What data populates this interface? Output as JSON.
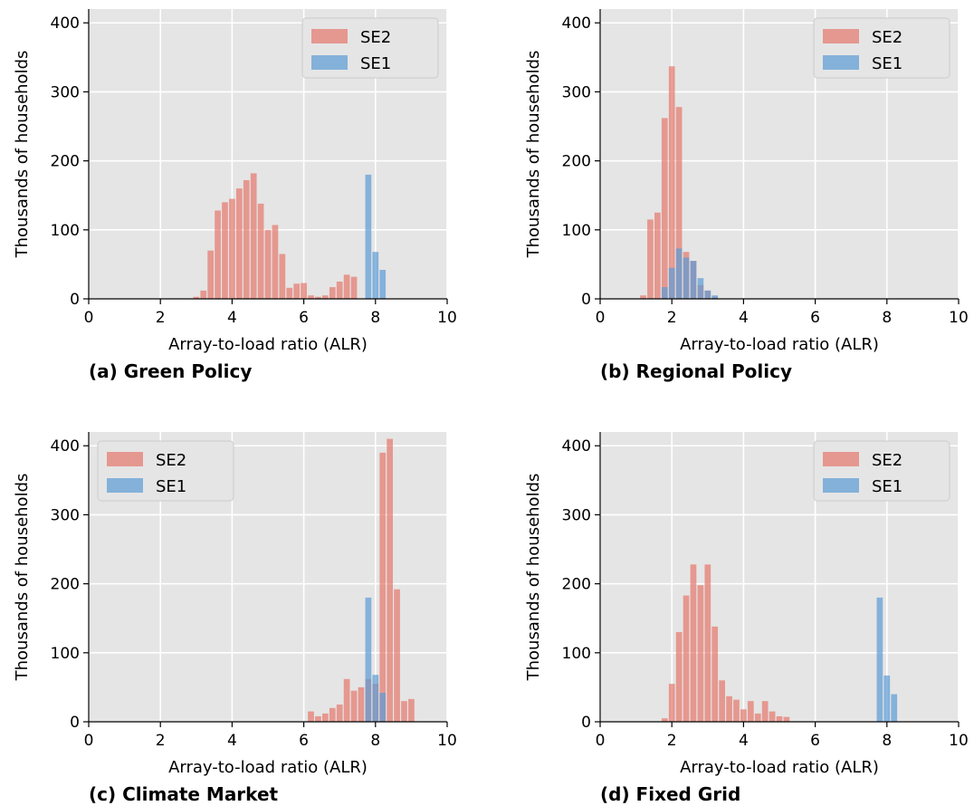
{
  "chart_data": [
    {
      "type": "bar",
      "caption": "(a) Green Policy",
      "xlabel": "Array-to-load ratio (ALR)",
      "ylabel": "Thousands of households",
      "xlim": [
        0,
        10
      ],
      "ylim": [
        0,
        420
      ],
      "xticks": [
        0,
        2,
        4,
        6,
        8,
        10
      ],
      "yticks": [
        0,
        100,
        200,
        300,
        400
      ],
      "grid": true,
      "legend_position": "top-right",
      "bin_width": 0.2,
      "series": [
        {
          "name": "SE2",
          "color": "#e5776b",
          "bins": [
            {
              "x": 2.9,
              "y": 3
            },
            {
              "x": 3.1,
              "y": 12
            },
            {
              "x": 3.3,
              "y": 70
            },
            {
              "x": 3.5,
              "y": 128
            },
            {
              "x": 3.7,
              "y": 140
            },
            {
              "x": 3.9,
              "y": 145
            },
            {
              "x": 4.1,
              "y": 160
            },
            {
              "x": 4.3,
              "y": 172
            },
            {
              "x": 4.5,
              "y": 182
            },
            {
              "x": 4.7,
              "y": 138
            },
            {
              "x": 4.9,
              "y": 100
            },
            {
              "x": 5.1,
              "y": 107
            },
            {
              "x": 5.3,
              "y": 65
            },
            {
              "x": 5.5,
              "y": 16
            },
            {
              "x": 5.7,
              "y": 22
            },
            {
              "x": 5.9,
              "y": 23
            },
            {
              "x": 6.1,
              "y": 5
            },
            {
              "x": 6.3,
              "y": 3
            },
            {
              "x": 6.5,
              "y": 5
            },
            {
              "x": 6.7,
              "y": 17
            },
            {
              "x": 6.9,
              "y": 25
            },
            {
              "x": 7.1,
              "y": 35
            },
            {
              "x": 7.3,
              "y": 32
            }
          ]
        },
        {
          "name": "SE1",
          "color": "#5b9bd5",
          "bins": [
            {
              "x": 7.7,
              "y": 180
            },
            {
              "x": 7.9,
              "y": 68
            },
            {
              "x": 8.1,
              "y": 42
            }
          ]
        }
      ]
    },
    {
      "type": "bar",
      "caption": "(b) Regional Policy",
      "xlabel": "Array-to-load ratio (ALR)",
      "ylabel": "Thousands of households",
      "xlim": [
        0,
        10
      ],
      "ylim": [
        0,
        420
      ],
      "xticks": [
        0,
        2,
        4,
        6,
        8,
        10
      ],
      "yticks": [
        0,
        100,
        200,
        300,
        400
      ],
      "grid": true,
      "legend_position": "top-right",
      "bin_width": 0.2,
      "series": [
        {
          "name": "SE2",
          "color": "#e5776b",
          "bins": [
            {
              "x": 1.1,
              "y": 5
            },
            {
              "x": 1.3,
              "y": 115
            },
            {
              "x": 1.5,
              "y": 125
            },
            {
              "x": 1.7,
              "y": 262
            },
            {
              "x": 1.9,
              "y": 337
            },
            {
              "x": 2.1,
              "y": 278
            },
            {
              "x": 2.3,
              "y": 68
            },
            {
              "x": 2.5,
              "y": 55
            },
            {
              "x": 2.7,
              "y": 20
            },
            {
              "x": 2.9,
              "y": 12
            },
            {
              "x": 3.1,
              "y": 3
            }
          ]
        },
        {
          "name": "SE1",
          "color": "#5b9bd5",
          "bins": [
            {
              "x": 1.7,
              "y": 17
            },
            {
              "x": 1.9,
              "y": 45
            },
            {
              "x": 2.1,
              "y": 73
            },
            {
              "x": 2.3,
              "y": 60
            },
            {
              "x": 2.5,
              "y": 55
            },
            {
              "x": 2.7,
              "y": 30
            },
            {
              "x": 2.9,
              "y": 12
            },
            {
              "x": 3.1,
              "y": 5
            }
          ]
        }
      ]
    },
    {
      "type": "bar",
      "caption": "(c) Climate Market",
      "xlabel": "Array-to-load ratio (ALR)",
      "ylabel": "Thousands of households",
      "xlim": [
        0,
        10
      ],
      "ylim": [
        0,
        420
      ],
      "xticks": [
        0,
        2,
        4,
        6,
        8,
        10
      ],
      "yticks": [
        0,
        100,
        200,
        300,
        400
      ],
      "grid": true,
      "legend_position": "top-left",
      "bin_width": 0.2,
      "series": [
        {
          "name": "SE2",
          "color": "#e5776b",
          "bins": [
            {
              "x": 6.1,
              "y": 15
            },
            {
              "x": 6.3,
              "y": 8
            },
            {
              "x": 6.5,
              "y": 12
            },
            {
              "x": 6.7,
              "y": 20
            },
            {
              "x": 6.9,
              "y": 25
            },
            {
              "x": 7.1,
              "y": 62
            },
            {
              "x": 7.3,
              "y": 45
            },
            {
              "x": 7.5,
              "y": 50
            },
            {
              "x": 7.7,
              "y": 62
            },
            {
              "x": 7.9,
              "y": 55
            },
            {
              "x": 8.1,
              "y": 390
            },
            {
              "x": 8.3,
              "y": 410
            },
            {
              "x": 8.5,
              "y": 192
            },
            {
              "x": 8.7,
              "y": 30
            },
            {
              "x": 8.9,
              "y": 33
            }
          ]
        },
        {
          "name": "SE1",
          "color": "#5b9bd5",
          "bins": [
            {
              "x": 7.7,
              "y": 180
            },
            {
              "x": 7.9,
              "y": 68
            },
            {
              "x": 8.1,
              "y": 42
            }
          ]
        }
      ]
    },
    {
      "type": "bar",
      "caption": "(d) Fixed Grid",
      "xlabel": "Array-to-load ratio (ALR)",
      "ylabel": "Thousands of households",
      "xlim": [
        0,
        10
      ],
      "ylim": [
        0,
        420
      ],
      "xticks": [
        0,
        2,
        4,
        6,
        8,
        10
      ],
      "yticks": [
        0,
        100,
        200,
        300,
        400
      ],
      "grid": true,
      "legend_position": "top-right",
      "bin_width": 0.2,
      "series": [
        {
          "name": "SE2",
          "color": "#e5776b",
          "bins": [
            {
              "x": 1.7,
              "y": 5
            },
            {
              "x": 1.9,
              "y": 55
            },
            {
              "x": 2.1,
              "y": 130
            },
            {
              "x": 2.3,
              "y": 183
            },
            {
              "x": 2.5,
              "y": 228
            },
            {
              "x": 2.7,
              "y": 198
            },
            {
              "x": 2.9,
              "y": 228
            },
            {
              "x": 3.1,
              "y": 138
            },
            {
              "x": 3.3,
              "y": 60
            },
            {
              "x": 3.5,
              "y": 37
            },
            {
              "x": 3.7,
              "y": 32
            },
            {
              "x": 3.9,
              "y": 18
            },
            {
              "x": 4.1,
              "y": 30
            },
            {
              "x": 4.3,
              "y": 12
            },
            {
              "x": 4.5,
              "y": 30
            },
            {
              "x": 4.7,
              "y": 15
            },
            {
              "x": 4.9,
              "y": 8
            },
            {
              "x": 5.1,
              "y": 7
            }
          ]
        },
        {
          "name": "SE1",
          "color": "#5b9bd5",
          "bins": [
            {
              "x": 7.7,
              "y": 180
            },
            {
              "x": 7.9,
              "y": 67
            },
            {
              "x": 8.1,
              "y": 40
            }
          ]
        }
      ]
    }
  ]
}
